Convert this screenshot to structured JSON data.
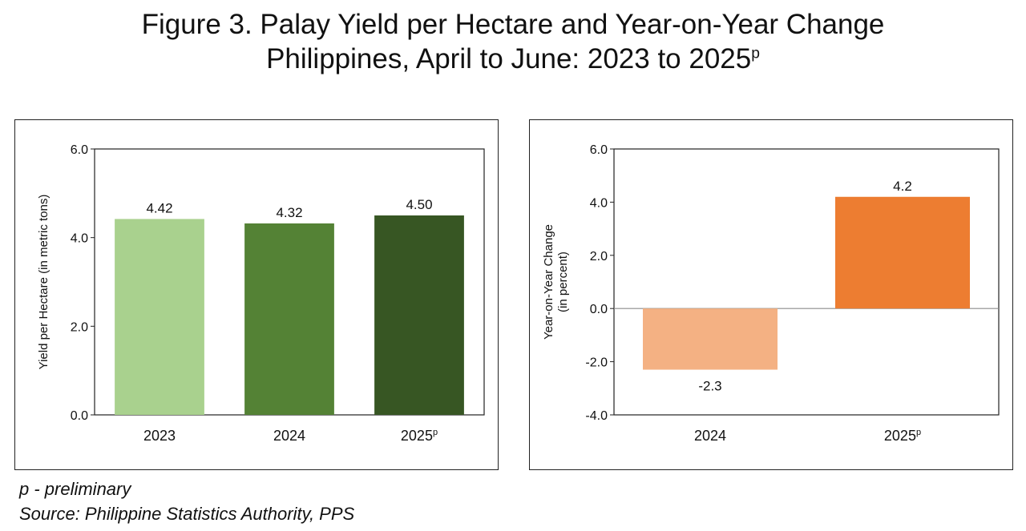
{
  "figure": {
    "title_line1": "Figure 3. Palay Yield per Hectare and Year-on-Year Change",
    "title_line2": "Philippines, April to June: 2023 to 2025",
    "title_sup": "p"
  },
  "footnotes": {
    "note": "p - preliminary",
    "source": "Source: Philippine Statistics Authority, PPS"
  },
  "colors": {
    "axis": "#222222",
    "text": "#111111"
  },
  "chart_data": [
    {
      "type": "bar",
      "title": "",
      "categories": [
        "2023",
        "2024",
        "2025"
      ],
      "category_sups": [
        "",
        "",
        "p"
      ],
      "values": [
        4.42,
        4.32,
        4.5
      ],
      "value_labels": [
        "4.42",
        "4.32",
        "4.50"
      ],
      "bar_colors": [
        "#a9d18e",
        "#548235",
        "#375623"
      ],
      "ylabel": "Yield per Hectare (in metric tons)",
      "ylabel_lines": [
        "Yield per Hectare (in metric tons)"
      ],
      "ylim": [
        0,
        6
      ],
      "yticks": [
        0,
        2,
        4,
        6
      ],
      "ytick_labels": [
        "0.0",
        "2.0",
        "4.0",
        "6.0"
      ],
      "grid": false
    },
    {
      "type": "bar",
      "title": "",
      "categories": [
        "2024",
        "2025"
      ],
      "category_sups": [
        "",
        "p"
      ],
      "values": [
        -2.3,
        4.2
      ],
      "value_labels": [
        "-2.3",
        "4.2"
      ],
      "bar_colors": [
        "#f4b183",
        "#ed7d31"
      ],
      "ylabel": "Year-on-Year Change (in percent)",
      "ylabel_lines": [
        "Year-on-Year Change",
        "(in percent)"
      ],
      "ylim": [
        -4,
        6
      ],
      "yticks": [
        -4,
        -2,
        0,
        2,
        4,
        6
      ],
      "ytick_labels": [
        "-4.0",
        "-2.0",
        "0.0",
        "2.0",
        "4.0",
        "6.0"
      ],
      "grid": false
    }
  ]
}
